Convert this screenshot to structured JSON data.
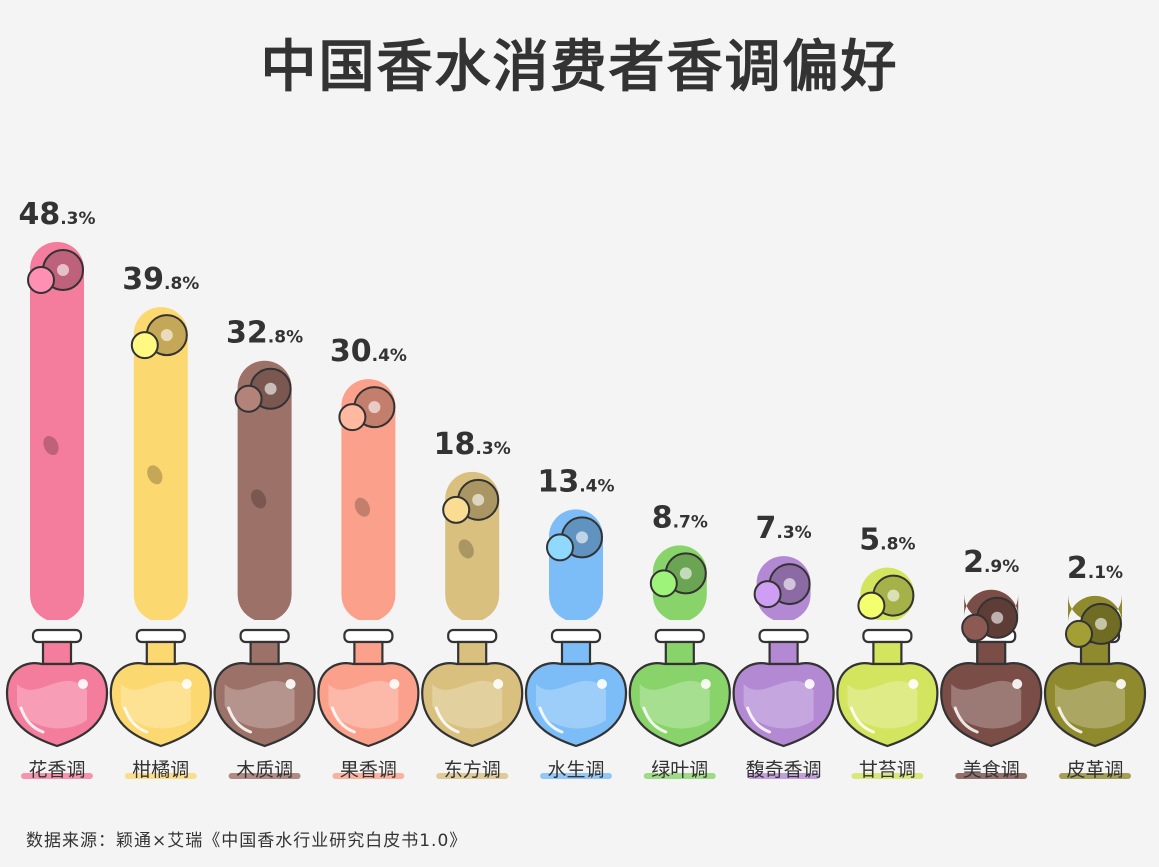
{
  "title": "中国香水消费者香调偏好",
  "source": "数据来源：颖通×艾瑞《中国香水行业研究白皮书1.0》",
  "chart_data": {
    "type": "bar",
    "title": "中国香水消费者香调偏好",
    "categories": [
      "花香调",
      "柑橘调",
      "木质调",
      "果香调",
      "东方调",
      "水生调",
      "绿叶调",
      "馥奇香调",
      "甘苔调",
      "美食调",
      "皮革调"
    ],
    "values": [
      48.3,
      39.8,
      32.8,
      30.4,
      18.3,
      13.4,
      8.7,
      7.3,
      5.8,
      2.9,
      2.1
    ],
    "value_labels": [
      [
        "48",
        ".3%"
      ],
      [
        "39",
        ".8%"
      ],
      [
        "32",
        ".8%"
      ],
      [
        "30",
        ".4%"
      ],
      [
        "18",
        ".3%"
      ],
      [
        "13",
        ".4%"
      ],
      [
        "8",
        ".7%"
      ],
      [
        "7",
        ".3%"
      ],
      [
        "5",
        ".8%"
      ],
      [
        "2",
        ".9%"
      ],
      [
        "2",
        ".1%"
      ]
    ],
    "colors": [
      "#f47c9c",
      "#fcd870",
      "#9c7168",
      "#fba18b",
      "#d9c07f",
      "#7cbcf7",
      "#89d46a",
      "#b389d4",
      "#d3e45e",
      "#7a4e47",
      "#8f8a2e"
    ],
    "icons": [
      "flower-icon",
      "citrus-icon",
      "wood-icon",
      "fruit-icon",
      "spice-icon",
      "wave-icon",
      "leaf-icon",
      "lavender-icon",
      "moss-icon",
      "chocolate-icon",
      "leather-icon"
    ]
  }
}
